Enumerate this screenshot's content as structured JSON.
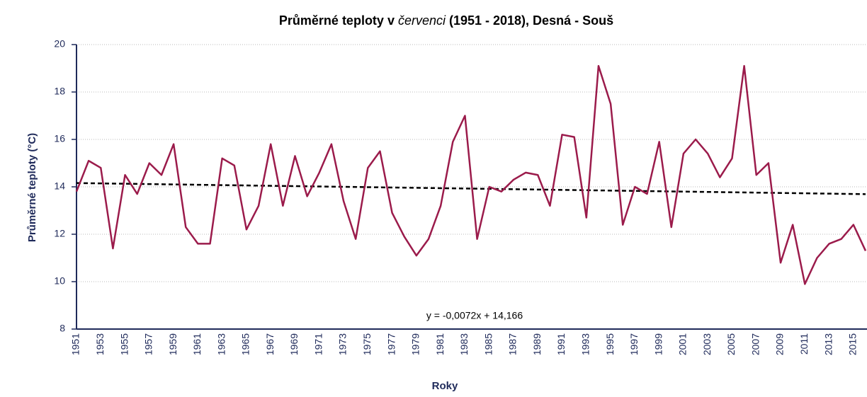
{
  "chart_data": {
    "type": "line",
    "title": [
      "Průměrné teploty v ",
      "červenci",
      " (1951 - 2018), Desná - Souš"
    ],
    "x_label": "Roky",
    "y_label": "Průměrné teploty (°C)",
    "annotation": "y = -0,0072x + 14,166",
    "categories": [
      "1951",
      null,
      "1953",
      null,
      "1955",
      null,
      "1957",
      null,
      "1959",
      null,
      "1961",
      null,
      "1963",
      null,
      "1965",
      null,
      "1967",
      null,
      "1969",
      null,
      "1971",
      null,
      "1973",
      null,
      "1975",
      null,
      "1977",
      null,
      "1979",
      null,
      "1981",
      null,
      "1983",
      null,
      "1985",
      null,
      "1987",
      null,
      "1989",
      null,
      "1991",
      null,
      "1993",
      null,
      "1995",
      null,
      "1997",
      null,
      "1999",
      null,
      "2001",
      null,
      "2003",
      null,
      "2005",
      null,
      "2007",
      null,
      "2009",
      null,
      "2011",
      null,
      "2013",
      null,
      "2015",
      null
    ],
    "values": [
      13.8,
      15.1,
      14.8,
      11.4,
      14.5,
      13.7,
      15.0,
      14.5,
      15.8,
      12.3,
      11.6,
      11.6,
      15.2,
      14.9,
      12.2,
      13.2,
      15.8,
      13.2,
      15.3,
      13.6,
      14.6,
      15.8,
      13.4,
      11.8,
      14.8,
      15.5,
      12.9,
      11.9,
      11.1,
      11.8,
      13.2,
      15.9,
      17.0,
      11.8,
      14.0,
      13.8,
      14.3,
      14.6,
      14.5,
      13.2,
      16.2,
      16.1,
      12.7,
      19.1,
      17.5,
      12.4,
      14.0,
      13.7,
      15.9,
      12.3,
      15.4,
      16.0,
      15.4,
      14.4,
      15.2,
      19.1,
      14.5,
      15.0,
      10.8,
      12.4,
      9.9,
      11.0,
      11.6,
      11.8,
      12.4,
      11.3
    ],
    "color": "#9b1b4b",
    "trendline": {
      "slope": -0.0072,
      "intercept": 14.166,
      "color": "#000000"
    },
    "ylim": [
      8,
      20
    ],
    "yticks": [
      8,
      10,
      12,
      14,
      16,
      18,
      20
    ],
    "grid": true
  }
}
